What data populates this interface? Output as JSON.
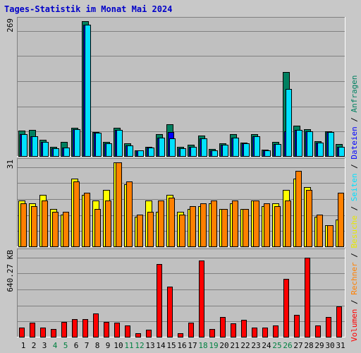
{
  "title": "Tages-Statistik im Monat Mai 2024",
  "colors": {
    "background": "#c8c8c8",
    "panel": "#c0c0c0",
    "title": "#0000c8",
    "anfragen": "#008060",
    "dateien": "#0000ff",
    "seiten": "#00e0ff",
    "besuche": "#ffff00",
    "rechner": "#ff8000",
    "volumen": "#ff0000",
    "weekend_label": "#008040"
  },
  "legend": {
    "volumen": "Volumen",
    "rechner": "Rechner",
    "besuche": "Besuche",
    "seiten": "Seiten",
    "dateien": "Dateien",
    "anfragen": "Anfragen",
    "separator": " / "
  },
  "chart_data": [
    {
      "type": "bar",
      "panel": "top",
      "axis_max_label": "269",
      "ylim": [
        0,
        269
      ],
      "categories": [
        "1",
        "2",
        "3",
        "4",
        "5",
        "6",
        "7",
        "8",
        "9",
        "10",
        "11",
        "12",
        "13",
        "14",
        "15",
        "16",
        "17",
        "18",
        "19",
        "20",
        "21",
        "22",
        "23",
        "24",
        "25",
        "26",
        "27",
        "28",
        "29",
        "30",
        "31"
      ],
      "weekend_days": [
        "4",
        "5",
        "11",
        "12",
        "18",
        "19",
        "25",
        "26"
      ],
      "series": [
        {
          "name": "Anfragen",
          "values": [
            52,
            53,
            33,
            19,
            30,
            58,
            269,
            49,
            29,
            57,
            27,
            13,
            20,
            45,
            64,
            20,
            24,
            42,
            15,
            27,
            45,
            28,
            45,
            14,
            29,
            168,
            61,
            54,
            31,
            51,
            25
          ]
        },
        {
          "name": "Dateien",
          "values": [
            45,
            40,
            30,
            17,
            18,
            55,
            262,
            47,
            27,
            53,
            22,
            12,
            18,
            38,
            49,
            17,
            19,
            37,
            13,
            24,
            38,
            26,
            40,
            12,
            25,
            50,
            53,
            51,
            28,
            49,
            19
          ]
        },
        {
          "name": "Seiten",
          "values": [
            45,
            40,
            30,
            17,
            18,
            55,
            262,
            47,
            27,
            53,
            22,
            12,
            18,
            38,
            36,
            17,
            19,
            37,
            13,
            24,
            38,
            26,
            40,
            12,
            25,
            134,
            53,
            51,
            28,
            49,
            19
          ]
        }
      ]
    },
    {
      "type": "bar",
      "panel": "middle",
      "axis_max_label": "31",
      "ylim": [
        0,
        31
      ],
      "categories": [
        "1",
        "2",
        "3",
        "4",
        "5",
        "6",
        "7",
        "8",
        "9",
        "10",
        "11",
        "12",
        "13",
        "14",
        "15",
        "16",
        "17",
        "18",
        "19",
        "20",
        "21",
        "22",
        "23",
        "24",
        "25",
        "26",
        "27",
        "28",
        "29",
        "30",
        "31"
      ],
      "series": [
        {
          "name": "Besuche",
          "values": [
            17,
            16,
            19,
            14,
            12,
            25,
            19,
            17,
            21,
            31,
            23,
            11,
            17,
            13,
            19,
            13,
            14,
            15,
            16,
            14,
            16,
            14,
            17,
            15,
            16,
            21,
            25,
            22,
            11,
            8,
            10
          ]
        },
        {
          "name": "Rechner",
          "values": [
            16,
            15,
            17,
            13,
            13,
            24,
            20,
            14,
            17,
            31,
            24,
            12,
            13,
            17,
            18,
            12,
            15,
            16,
            17,
            14,
            17,
            14,
            17,
            16,
            15,
            17,
            28,
            21,
            12,
            8,
            20
          ]
        }
      ]
    },
    {
      "type": "bar",
      "panel": "bottom",
      "axis_max_label": "640.27 KB",
      "ylim": [
        0,
        640.27
      ],
      "categories": [
        "1",
        "2",
        "3",
        "4",
        "5",
        "6",
        "7",
        "8",
        "9",
        "10",
        "11",
        "12",
        "13",
        "14",
        "15",
        "16",
        "17",
        "18",
        "19",
        "20",
        "21",
        "22",
        "23",
        "24",
        "25",
        "26",
        "27",
        "28",
        "29",
        "30",
        "31"
      ],
      "series": [
        {
          "name": "Volumen",
          "values": [
            74,
            113,
            74,
            64,
            117,
            140,
            140,
            184,
            117,
            113,
            89,
            30,
            59,
            555,
            385,
            30,
            113,
            580,
            64,
            156,
            105,
            133,
            74,
            74,
            89,
            445,
            170,
            605,
            89,
            156,
            235
          ]
        }
      ]
    }
  ]
}
